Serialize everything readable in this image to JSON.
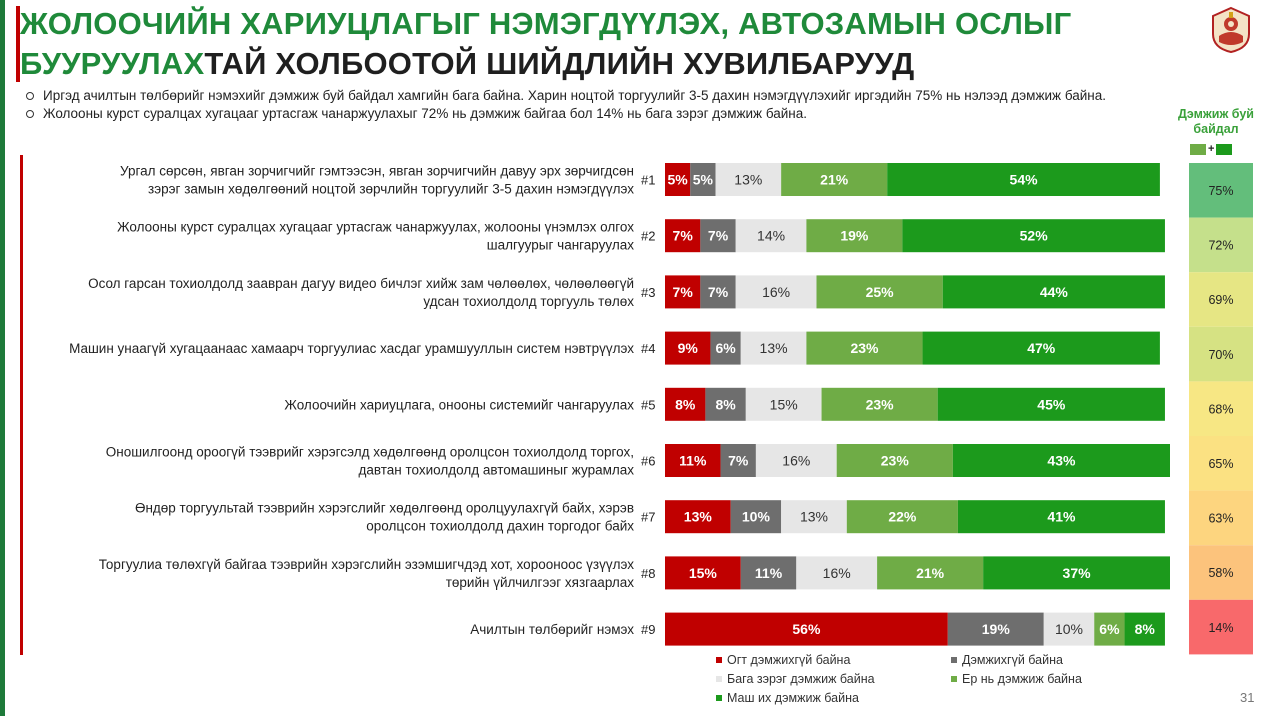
{
  "header": {
    "title_line1": "ЖОЛООЧИЙН ХАРИУЦЛАГЫГ НЭМЭГДҮҮЛЭХ, АВТОЗАМЫН ОСЛЫГ",
    "title_line2_green": "БУУРУУЛАХ",
    "title_line2_dark": "ТАЙ ХОЛБООТОЙ ШИЙДЛИЙН ХУВИЛБАРУУД"
  },
  "bullets": [
    "Иргэд ачилтын төлбөрийг нэмэхийг дэмжиж буй байдал хамгийн бага байна. Харин ноцтой торгуулийг 3-5 дахин нэмэгдүүлэхийг иргэдийн 75% нь нэлээд дэмжиж байна.",
    "Жолооны курст суралцах хугацааг уртасгаж чанаржуулахыг 72% нь дэмжиж байгаа бол 14% нь бага зэрэг дэмжиж байна."
  ],
  "side_panel": {
    "header": "Дэмжиж буй байдал",
    "plus_sign": "+",
    "values": [
      "75%",
      "72%",
      "69%",
      "70%",
      "68%",
      "65%",
      "63%",
      "58%",
      "14%"
    ],
    "colors": [
      "#63be7b",
      "#c5e08b",
      "#e6e684",
      "#d6e283",
      "#f7e784",
      "#fbe182",
      "#fdd57f",
      "#fcc37c",
      "#f8696b"
    ]
  },
  "page_number": "31",
  "chart_data": {
    "type": "bar",
    "orientation": "horizontal",
    "stacked": true,
    "categories": [
      "Ургал сөрсөн, явган зорчигчийг гэмтээсэн, явган зорчигчийн давуу эрх зөрчигдсөн зэрэг замын хөдөлгөөний ноцтой зөрчлийн торгуулийг 3-5 дахин нэмэгдүүлэх",
      "Жолооны курст суралцах хугацааг уртасгаж чанаржуулах, жолооны үнэмлэх олгох шалгуурыг чангаруулах",
      "Осол гарсан тохиолдолд заавран дагуу видео бичлэг хийж зам чөлөөлөх, чөлөөлөөгүй удсан тохиолдолд торгууль төлөх",
      "Машин унаагүй хугацаанаас хамаарч торгуулиас хасдаг урамшууллын систем нэвтрүүлэх",
      "Жолоочийн хариуцлага, онооны системийг чангаруулах",
      "Оношилгоонд ороогүй тээврийг хэрэгсэлд хөдөлгөөнд оролцсон тохиолдолд торгох, давтан тохиолдолд автомашиныг журамлах",
      "Өндөр торгуультай тээврийн хэрэгслийг хөдөлгөөнд оролцуулахгүй байх, хэрэв оролцсон тохиолдолд дахин торгодог байх",
      "Торгуулиа төлөхгүй байгаа тээврийн хэрэгслийн эзэмшигчдэд хот, хорооноос үзүүлэх төрийн үйлчилгээг хязгаарлах",
      "Ачилтын төлбөрийг нэмэх"
    ],
    "row_ids": [
      "#1",
      "#2",
      "#3",
      "#4",
      "#5",
      "#6",
      "#7",
      "#8",
      "#9"
    ],
    "series": [
      {
        "name": "Огт дэмжихгүй байна",
        "color": "#c00000",
        "values": [
          5,
          7,
          7,
          9,
          8,
          11,
          13,
          15,
          56
        ]
      },
      {
        "name": "Дэмжихгүй байна",
        "color": "#6e6e6e",
        "values": [
          5,
          7,
          7,
          6,
          8,
          7,
          10,
          11,
          19
        ]
      },
      {
        "name": "Бага зэрэг дэмжиж байна",
        "color": "#e6e6e6",
        "values": [
          13,
          14,
          16,
          13,
          15,
          16,
          13,
          16,
          10
        ]
      },
      {
        "name": "Ер нь дэмжиж байна",
        "color": "#6fac46",
        "values": [
          21,
          19,
          25,
          23,
          23,
          23,
          22,
          21,
          6
        ]
      },
      {
        "name": "Маш их дэмжиж байна",
        "color": "#1c9a1c",
        "values": [
          54,
          52,
          44,
          47,
          45,
          43,
          41,
          37,
          8
        ]
      }
    ],
    "value_labels": [
      [
        "5%",
        "5%",
        "13%",
        "21%",
        "54%"
      ],
      [
        "7%",
        "7%",
        "14%",
        "19%",
        "52%"
      ],
      [
        "7%",
        "7%",
        "16%",
        "25%",
        "44%"
      ],
      [
        "9%",
        "6%",
        "13%",
        "23%",
        "47%"
      ],
      [
        "8%",
        "8%",
        "15%",
        "23%",
        "45%"
      ],
      [
        "11%",
        "7%",
        "16%",
        "23%",
        "43%"
      ],
      [
        "13%",
        "10%",
        "13%",
        "22%",
        "41%"
      ],
      [
        "15%",
        "11%",
        "16%",
        "21%",
        "37%"
      ],
      [
        "56%",
        "19%",
        "10%",
        "6%",
        "8%"
      ]
    ],
    "xlim": [
      0,
      100
    ],
    "grid": false,
    "legend_position": "bottom"
  }
}
